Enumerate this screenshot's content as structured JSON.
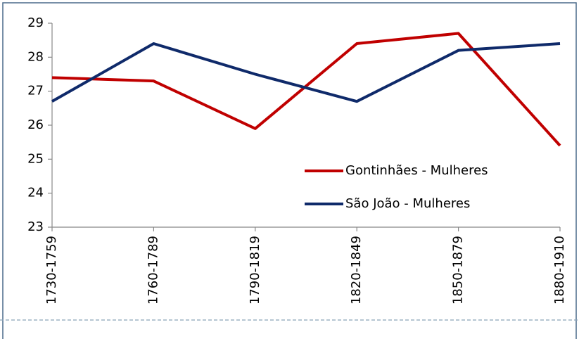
{
  "chart_data": {
    "type": "line",
    "categories": [
      "1730-1759",
      "1760-1789",
      "1790-1819",
      "1820-1849",
      "1850-1879",
      "1880-1910"
    ],
    "series": [
      {
        "name": "Gontinhães - Mulheres",
        "color": "#c00000",
        "values": [
          27.4,
          27.3,
          25.9,
          28.4,
          28.7,
          25.4
        ]
      },
      {
        "name": "São João - Mulheres",
        "color": "#0f2a6a",
        "values": [
          26.7,
          28.4,
          27.5,
          26.7,
          28.2,
          28.4
        ]
      }
    ],
    "ylim": [
      23,
      29
    ],
    "yticks": [
      23,
      24,
      25,
      26,
      27,
      28,
      29
    ],
    "grid": false,
    "legend": "right"
  }
}
